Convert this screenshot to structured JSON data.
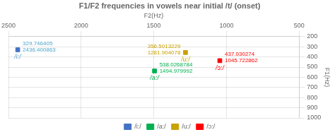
{
  "chart_data": {
    "type": "scatter",
    "title": "F1/F2 frequencies in vowels near initial /t/ (onset)",
    "xlabel": "F2(Hz)",
    "ylabel": "F1(Hz)",
    "xlim": [
      2500,
      500
    ],
    "ylim": [
      1000,
      200
    ],
    "xticks": [
      2500,
      2000,
      1500,
      1000,
      500
    ],
    "yticks": [
      200,
      300,
      400,
      500,
      600,
      700,
      800,
      900,
      1000
    ],
    "grid": true,
    "legend": "bottom",
    "marker": "square",
    "series": [
      {
        "name": "/i:/",
        "color": "#4472C4",
        "x": [
          2436.400863
        ],
        "values": [
          329.746405
        ]
      },
      {
        "name": "/a:/",
        "color": "#00B050",
        "x": [
          1494.979992
        ],
        "values": [
          538.0268784
        ]
      },
      {
        "name": "/u:/",
        "color": "#C8A200",
        "x": [
          1281.904078
        ],
        "values": [
          356.5013229
        ]
      },
      {
        "name": "/ɔ:/",
        "color": "#FF0000",
        "x": [
          1045.722862
        ],
        "values": [
          437.030274
        ]
      }
    ],
    "annotations": [
      {
        "text": "/i:/",
        "x": 2436.400863,
        "y": 329.746405,
        "color": "#4da6c8"
      },
      {
        "text": "2436.400863",
        "x": 2436.400863,
        "y": 329.746405,
        "color": "#4da6c8"
      },
      {
        "text": "329.746405",
        "x": 2436.400863,
        "y": 329.746405,
        "color": "#4da6c8"
      },
      {
        "text": "/u:/",
        "x": 1281.904078,
        "y": 356.5013229,
        "color": "#C8A200"
      },
      {
        "text": "1281.904078",
        "x": 1281.904078,
        "y": 356.5013229,
        "color": "#C8A200"
      },
      {
        "text": "356.5013229",
        "x": 1281.904078,
        "y": 356.5013229,
        "color": "#C8A200"
      },
      {
        "text": "/a:/",
        "x": 1494.979992,
        "y": 538.0268784,
        "color": "#00B050"
      },
      {
        "text": "1494.979992",
        "x": 1494.979992,
        "y": 538.0268784,
        "color": "#00B050"
      },
      {
        "text": "538.0268784",
        "x": 1494.979992,
        "y": 538.0268784,
        "color": "#00B050"
      },
      {
        "text": "/ɔ:/",
        "x": 1045.722862,
        "y": 437.030274,
        "color": "#FF0000"
      },
      {
        "text": "1045.722862",
        "x": 1045.722862,
        "y": 437.030274,
        "color": "#FF0000"
      },
      {
        "text": "437.030274",
        "x": 1045.722862,
        "y": 437.030274,
        "color": "#FF0000"
      }
    ]
  }
}
